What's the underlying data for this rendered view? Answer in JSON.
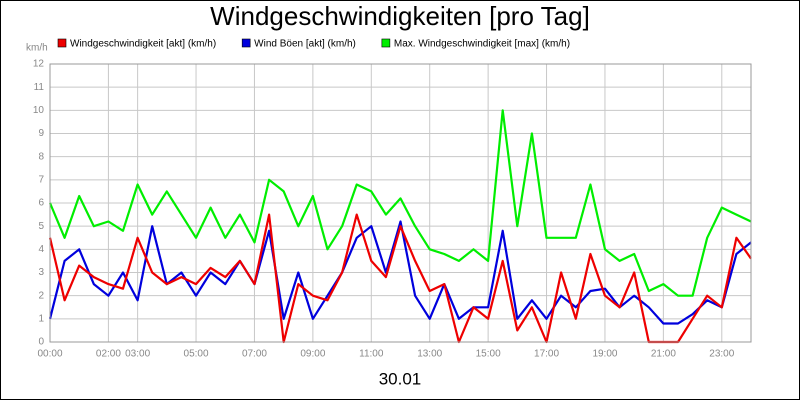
{
  "chart_data": {
    "type": "line",
    "title": "Windgeschwindigkeiten [pro Tag]",
    "y_label": "km/h",
    "x_label": "30.01",
    "x": [
      0,
      0.5,
      1,
      1.5,
      2,
      2.5,
      3,
      3.5,
      4,
      4.5,
      5,
      5.5,
      6,
      6.5,
      7,
      7.5,
      8,
      8.5,
      9,
      9.5,
      10,
      10.5,
      11,
      11.5,
      12,
      12.5,
      13,
      13.5,
      14,
      14.5,
      15,
      15.5,
      16,
      16.5,
      17,
      17.5,
      18,
      18.5,
      19,
      19.5,
      20,
      20.5,
      21,
      21.5,
      22,
      22.5,
      23,
      23.5,
      24
    ],
    "series": [
      {
        "name": "Max. Windgeschwindigkeit [max] (km/h)",
        "color": "#00ee00",
        "values": [
          6,
          4.5,
          6.3,
          5,
          5.2,
          4.8,
          6.8,
          5.5,
          6.5,
          5.5,
          4.5,
          5.8,
          4.5,
          5.5,
          4.3,
          7,
          6.5,
          5,
          6.3,
          4,
          5,
          6.8,
          6.5,
          5.5,
          6.2,
          5,
          4,
          3.8,
          3.5,
          4,
          3.5,
          10,
          5,
          9,
          4.5,
          4.5,
          4.5,
          6.8,
          4,
          3.5,
          3.8,
          2.2,
          2.5,
          2,
          2,
          4.5,
          5.8,
          5.5,
          5.2
        ]
      },
      {
        "name": "Wind Böen [akt] (km/h)",
        "color": "#0000dd",
        "values": [
          1,
          3.5,
          4,
          2.5,
          2,
          3,
          1.8,
          5,
          2.5,
          3,
          2,
          3,
          2.5,
          3.5,
          2.5,
          4.8,
          1,
          3,
          1,
          2,
          3,
          4.5,
          5,
          3,
          5.2,
          2,
          1,
          2.5,
          1,
          1.5,
          1.5,
          4.8,
          1,
          1.8,
          1,
          2,
          1.5,
          2.2,
          2.3,
          1.5,
          2,
          1.5,
          0.8,
          0.8,
          1.2,
          1.8,
          1.5,
          3.8,
          4.3
        ]
      },
      {
        "name": "Windgeschwindigkeit [akt] (km/h)",
        "color": "#ee0000",
        "values": [
          4.5,
          1.8,
          3.3,
          2.8,
          2.5,
          2.3,
          4.5,
          3,
          2.5,
          2.8,
          2.5,
          3.2,
          2.8,
          3.5,
          2.5,
          5.5,
          0,
          2.5,
          2,
          1.8,
          3,
          5.5,
          3.5,
          2.8,
          5,
          3.5,
          2.2,
          2.5,
          0,
          1.5,
          1,
          3.5,
          0.5,
          1.5,
          0,
          3,
          1,
          3.8,
          2,
          1.5,
          3,
          0,
          0,
          0,
          1,
          2,
          1.5,
          4.5,
          3.6
        ]
      }
    ],
    "legend_order": [
      2,
      1,
      0
    ],
    "xlim": [
      0,
      24
    ],
    "xticks": [
      {
        "value": 0,
        "label": "00:00"
      },
      {
        "value": 2,
        "label": "02:00"
      },
      {
        "value": 3,
        "label": "03:00"
      },
      {
        "value": 5,
        "label": "05:00"
      },
      {
        "value": 7,
        "label": "07:00"
      },
      {
        "value": 9,
        "label": "09:00"
      },
      {
        "value": 11,
        "label": "11:00"
      },
      {
        "value": 13,
        "label": "13:00"
      },
      {
        "value": 15,
        "label": "15:00"
      },
      {
        "value": 17,
        "label": "17:00"
      },
      {
        "value": 19,
        "label": "19:00"
      },
      {
        "value": 21,
        "label": "21:00"
      },
      {
        "value": 23,
        "label": "23:00"
      }
    ],
    "ylim": [
      0,
      12
    ],
    "yticks": [
      0,
      1,
      2,
      3,
      4,
      5,
      6,
      7,
      8,
      9,
      10,
      11,
      12
    ],
    "grid": true
  }
}
